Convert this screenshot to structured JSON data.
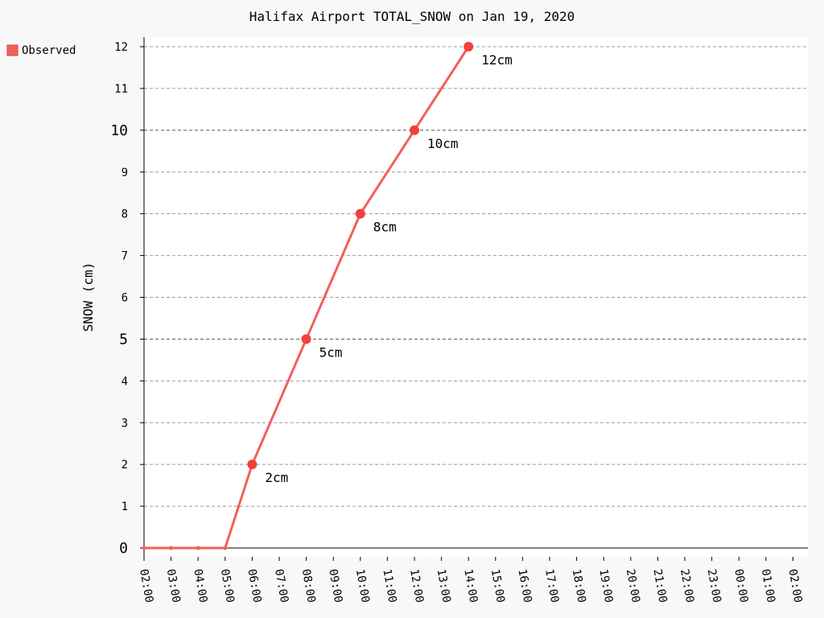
{
  "chart_data": {
    "type": "line",
    "title": "Halifax Airport TOTAL_SNOW on Jan 19, 2020",
    "ylabel": "SNOW (cm)",
    "xlabel": "",
    "ylim": [
      0,
      12
    ],
    "yticks": [
      0,
      1,
      2,
      3,
      4,
      5,
      6,
      7,
      8,
      9,
      10,
      11,
      12
    ],
    "ymajor": [
      0,
      5,
      10
    ],
    "xticks": [
      "02:00",
      "03:00",
      "04:00",
      "05:00",
      "06:00",
      "07:00",
      "08:00",
      "09:00",
      "10:00",
      "11:00",
      "12:00",
      "13:00",
      "14:00",
      "15:00",
      "16:00",
      "17:00",
      "18:00",
      "19:00",
      "20:00",
      "21:00",
      "22:00",
      "23:00",
      "00:00",
      "01:00",
      "02:00"
    ],
    "grid": true,
    "legend": {
      "placement": "top-left",
      "entries": [
        {
          "name": "Observed",
          "color": "#f0605a"
        }
      ]
    },
    "series": [
      {
        "name": "Observed",
        "color": "#f0605a",
        "points": [
          {
            "x": "02:00",
            "y": 0,
            "label": ""
          },
          {
            "x": "03:00",
            "y": 0,
            "label": ""
          },
          {
            "x": "04:00",
            "y": 0,
            "label": ""
          },
          {
            "x": "05:00",
            "y": 0,
            "label": ""
          },
          {
            "x": "06:00",
            "y": 2,
            "label": "2cm"
          },
          {
            "x": "08:00",
            "y": 5,
            "label": "5cm"
          },
          {
            "x": "10:00",
            "y": 8,
            "label": "8cm"
          },
          {
            "x": "12:00",
            "y": 10,
            "label": "10cm"
          },
          {
            "x": "14:00",
            "y": 12,
            "label": "12cm"
          }
        ]
      }
    ]
  }
}
